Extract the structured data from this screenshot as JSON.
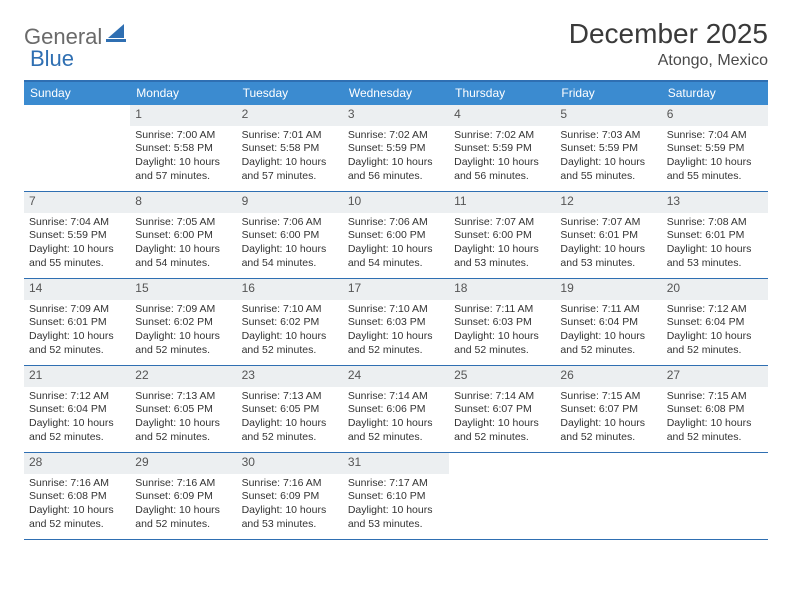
{
  "logo": {
    "part1": "General",
    "part2": "Blue"
  },
  "title": "December 2025",
  "location": "Atongo, Mexico",
  "colors": {
    "header_bar": "#3b8bd0",
    "header_border": "#2f6fb2",
    "daynum_bg": "#eceff1",
    "logo_gray": "#6a6a6a",
    "logo_blue": "#2f6fb2"
  },
  "weekdays": [
    "Sunday",
    "Monday",
    "Tuesday",
    "Wednesday",
    "Thursday",
    "Friday",
    "Saturday"
  ],
  "weeks": [
    [
      {
        "num": "",
        "sunrise": "",
        "sunset": "",
        "daylight": "",
        "empty": true
      },
      {
        "num": "1",
        "sunrise": "Sunrise: 7:00 AM",
        "sunset": "Sunset: 5:58 PM",
        "daylight": "Daylight: 10 hours and 57 minutes."
      },
      {
        "num": "2",
        "sunrise": "Sunrise: 7:01 AM",
        "sunset": "Sunset: 5:58 PM",
        "daylight": "Daylight: 10 hours and 57 minutes."
      },
      {
        "num": "3",
        "sunrise": "Sunrise: 7:02 AM",
        "sunset": "Sunset: 5:59 PM",
        "daylight": "Daylight: 10 hours and 56 minutes."
      },
      {
        "num": "4",
        "sunrise": "Sunrise: 7:02 AM",
        "sunset": "Sunset: 5:59 PM",
        "daylight": "Daylight: 10 hours and 56 minutes."
      },
      {
        "num": "5",
        "sunrise": "Sunrise: 7:03 AM",
        "sunset": "Sunset: 5:59 PM",
        "daylight": "Daylight: 10 hours and 55 minutes."
      },
      {
        "num": "6",
        "sunrise": "Sunrise: 7:04 AM",
        "sunset": "Sunset: 5:59 PM",
        "daylight": "Daylight: 10 hours and 55 minutes."
      }
    ],
    [
      {
        "num": "7",
        "sunrise": "Sunrise: 7:04 AM",
        "sunset": "Sunset: 5:59 PM",
        "daylight": "Daylight: 10 hours and 55 minutes."
      },
      {
        "num": "8",
        "sunrise": "Sunrise: 7:05 AM",
        "sunset": "Sunset: 6:00 PM",
        "daylight": "Daylight: 10 hours and 54 minutes."
      },
      {
        "num": "9",
        "sunrise": "Sunrise: 7:06 AM",
        "sunset": "Sunset: 6:00 PM",
        "daylight": "Daylight: 10 hours and 54 minutes."
      },
      {
        "num": "10",
        "sunrise": "Sunrise: 7:06 AM",
        "sunset": "Sunset: 6:00 PM",
        "daylight": "Daylight: 10 hours and 54 minutes."
      },
      {
        "num": "11",
        "sunrise": "Sunrise: 7:07 AM",
        "sunset": "Sunset: 6:00 PM",
        "daylight": "Daylight: 10 hours and 53 minutes."
      },
      {
        "num": "12",
        "sunrise": "Sunrise: 7:07 AM",
        "sunset": "Sunset: 6:01 PM",
        "daylight": "Daylight: 10 hours and 53 minutes."
      },
      {
        "num": "13",
        "sunrise": "Sunrise: 7:08 AM",
        "sunset": "Sunset: 6:01 PM",
        "daylight": "Daylight: 10 hours and 53 minutes."
      }
    ],
    [
      {
        "num": "14",
        "sunrise": "Sunrise: 7:09 AM",
        "sunset": "Sunset: 6:01 PM",
        "daylight": "Daylight: 10 hours and 52 minutes."
      },
      {
        "num": "15",
        "sunrise": "Sunrise: 7:09 AM",
        "sunset": "Sunset: 6:02 PM",
        "daylight": "Daylight: 10 hours and 52 minutes."
      },
      {
        "num": "16",
        "sunrise": "Sunrise: 7:10 AM",
        "sunset": "Sunset: 6:02 PM",
        "daylight": "Daylight: 10 hours and 52 minutes."
      },
      {
        "num": "17",
        "sunrise": "Sunrise: 7:10 AM",
        "sunset": "Sunset: 6:03 PM",
        "daylight": "Daylight: 10 hours and 52 minutes."
      },
      {
        "num": "18",
        "sunrise": "Sunrise: 7:11 AM",
        "sunset": "Sunset: 6:03 PM",
        "daylight": "Daylight: 10 hours and 52 minutes."
      },
      {
        "num": "19",
        "sunrise": "Sunrise: 7:11 AM",
        "sunset": "Sunset: 6:04 PM",
        "daylight": "Daylight: 10 hours and 52 minutes."
      },
      {
        "num": "20",
        "sunrise": "Sunrise: 7:12 AM",
        "sunset": "Sunset: 6:04 PM",
        "daylight": "Daylight: 10 hours and 52 minutes."
      }
    ],
    [
      {
        "num": "21",
        "sunrise": "Sunrise: 7:12 AM",
        "sunset": "Sunset: 6:04 PM",
        "daylight": "Daylight: 10 hours and 52 minutes."
      },
      {
        "num": "22",
        "sunrise": "Sunrise: 7:13 AM",
        "sunset": "Sunset: 6:05 PM",
        "daylight": "Daylight: 10 hours and 52 minutes."
      },
      {
        "num": "23",
        "sunrise": "Sunrise: 7:13 AM",
        "sunset": "Sunset: 6:05 PM",
        "daylight": "Daylight: 10 hours and 52 minutes."
      },
      {
        "num": "24",
        "sunrise": "Sunrise: 7:14 AM",
        "sunset": "Sunset: 6:06 PM",
        "daylight": "Daylight: 10 hours and 52 minutes."
      },
      {
        "num": "25",
        "sunrise": "Sunrise: 7:14 AM",
        "sunset": "Sunset: 6:07 PM",
        "daylight": "Daylight: 10 hours and 52 minutes."
      },
      {
        "num": "26",
        "sunrise": "Sunrise: 7:15 AM",
        "sunset": "Sunset: 6:07 PM",
        "daylight": "Daylight: 10 hours and 52 minutes."
      },
      {
        "num": "27",
        "sunrise": "Sunrise: 7:15 AM",
        "sunset": "Sunset: 6:08 PM",
        "daylight": "Daylight: 10 hours and 52 minutes."
      }
    ],
    [
      {
        "num": "28",
        "sunrise": "Sunrise: 7:16 AM",
        "sunset": "Sunset: 6:08 PM",
        "daylight": "Daylight: 10 hours and 52 minutes."
      },
      {
        "num": "29",
        "sunrise": "Sunrise: 7:16 AM",
        "sunset": "Sunset: 6:09 PM",
        "daylight": "Daylight: 10 hours and 52 minutes."
      },
      {
        "num": "30",
        "sunrise": "Sunrise: 7:16 AM",
        "sunset": "Sunset: 6:09 PM",
        "daylight": "Daylight: 10 hours and 53 minutes."
      },
      {
        "num": "31",
        "sunrise": "Sunrise: 7:17 AM",
        "sunset": "Sunset: 6:10 PM",
        "daylight": "Daylight: 10 hours and 53 minutes."
      },
      {
        "num": "",
        "sunrise": "",
        "sunset": "",
        "daylight": "",
        "empty": true
      },
      {
        "num": "",
        "sunrise": "",
        "sunset": "",
        "daylight": "",
        "empty": true
      },
      {
        "num": "",
        "sunrise": "",
        "sunset": "",
        "daylight": "",
        "empty": true
      }
    ]
  ]
}
